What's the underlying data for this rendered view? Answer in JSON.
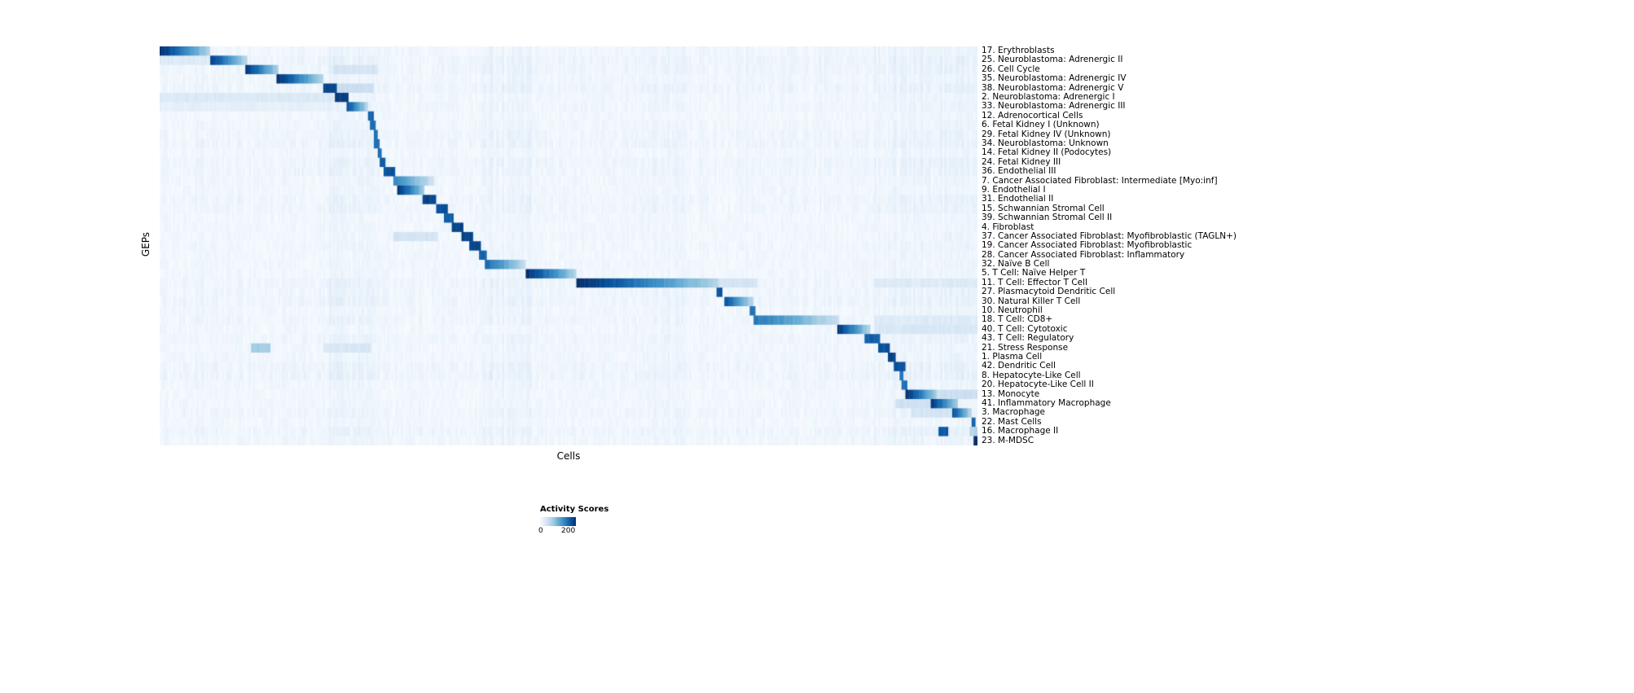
{
  "chart_data": {
    "type": "heatmap",
    "title": "",
    "xlabel": "Cells",
    "ylabel": "GEPs",
    "colorbar": {
      "title": "Activity Scores",
      "min": 0,
      "max": 200,
      "min_label": "0",
      "max_label": "200",
      "colors": [
        "#f7fbff",
        "#deebf7",
        "#c6dbef",
        "#9ecae1",
        "#6baed6",
        "#4292c6",
        "#2171b5",
        "#08519c",
        "#08306b"
      ]
    },
    "n_cols": 420,
    "noise": {
      "base": 4,
      "column": 7,
      "cell": 10,
      "bands": [
        [
          0.205,
          0.27,
          10
        ],
        [
          0.395,
          0.455,
          8
        ],
        [
          0.595,
          0.65,
          6
        ],
        [
          0.875,
          1.0,
          10
        ]
      ]
    },
    "rows": [
      {
        "label": "17. Erythroblasts",
        "blocks": [
          [
            0.0,
            0.062,
            200
          ]
        ]
      },
      {
        "label": "25. Neuroblastoma: Adrenergic II",
        "blocks": [
          [
            0.062,
            0.106,
            190
          ],
          [
            0.0,
            0.062,
            25
          ]
        ]
      },
      {
        "label": "26. Cell Cycle",
        "blocks": [
          [
            0.104,
            0.146,
            195
          ],
          [
            0.213,
            0.266,
            35
          ]
        ]
      },
      {
        "label": "35. Neuroblastoma: Adrenergic IV",
        "blocks": [
          [
            0.143,
            0.199,
            200
          ]
        ]
      },
      {
        "label": "38. Neuroblastoma: Adrenergic V",
        "blocks": [
          [
            0.199,
            0.217,
            185
          ],
          [
            0.217,
            0.262,
            45
          ]
        ]
      },
      {
        "label": "2. Neuroblastoma: Adrenergic I",
        "blocks": [
          [
            0.215,
            0.232,
            190
          ],
          [
            0.0,
            0.215,
            28
          ]
        ]
      },
      {
        "label": "33. Neuroblastoma: Adrenergic III",
        "blocks": [
          [
            0.229,
            0.255,
            175
          ],
          [
            0.0,
            0.21,
            18
          ]
        ]
      },
      {
        "label": "12. Adrenocortical Cells",
        "blocks": [
          [
            0.255,
            0.262,
            160
          ]
        ]
      },
      {
        "label": "6. Fetal Kidney I (Unknown)",
        "blocks": [
          [
            0.258,
            0.264,
            150
          ]
        ]
      },
      {
        "label": "29. Fetal Kidney IV (Unknown)",
        "blocks": [
          [
            0.261,
            0.266,
            150
          ]
        ]
      },
      {
        "label": "34. Neuroblastoma: Unknown",
        "blocks": [
          [
            0.263,
            0.268,
            150
          ]
        ]
      },
      {
        "label": "14. Fetal Kidney II (Podocytes)",
        "blocks": [
          [
            0.266,
            0.271,
            155
          ]
        ]
      },
      {
        "label": "24. Fetal Kidney III",
        "blocks": [
          [
            0.269,
            0.276,
            165
          ]
        ]
      },
      {
        "label": "36. Endothelial III",
        "blocks": [
          [
            0.273,
            0.289,
            175
          ]
        ]
      },
      {
        "label": "7. Cancer Associated Fibroblast: Intermediate [Myo:inf]",
        "blocks": [
          [
            0.286,
            0.335,
            135
          ]
        ]
      },
      {
        "label": "9. Endothelial I",
        "blocks": [
          [
            0.29,
            0.325,
            200
          ]
        ]
      },
      {
        "label": "31. Endothelial II",
        "blocks": [
          [
            0.322,
            0.339,
            185
          ]
        ]
      },
      {
        "label": "15. Schwannian Stromal Cell",
        "blocks": [
          [
            0.337,
            0.352,
            175
          ]
        ]
      },
      {
        "label": "39. Schwannian Stromal Cell II",
        "blocks": [
          [
            0.348,
            0.359,
            165
          ]
        ]
      },
      {
        "label": "4. Fibroblast",
        "blocks": [
          [
            0.357,
            0.372,
            185
          ]
        ]
      },
      {
        "label": "37. Cancer Associated Fibroblast: Myofibroblastic (TAGLN+)",
        "blocks": [
          [
            0.368,
            0.383,
            185
          ],
          [
            0.286,
            0.34,
            35
          ]
        ]
      },
      {
        "label": "19. Cancer Associated Fibroblast: Myofibroblastic",
        "blocks": [
          [
            0.379,
            0.393,
            185
          ]
        ]
      },
      {
        "label": "28. Cancer Associated Fibroblast: Inflammatory",
        "blocks": [
          [
            0.39,
            0.4,
            165
          ]
        ]
      },
      {
        "label": "32. Naïve B Cell",
        "blocks": [
          [
            0.398,
            0.448,
            155
          ]
        ]
      },
      {
        "label": "5. T Cell: Naïve Helper T",
        "blocks": [
          [
            0.447,
            0.51,
            200
          ]
        ]
      },
      {
        "label": "11. T Cell: Effector T Cell",
        "blocks": [
          [
            0.509,
            0.683,
            200
          ],
          [
            0.683,
            0.73,
            35
          ],
          [
            0.875,
            1.0,
            25
          ]
        ]
      },
      {
        "label": "27. Plasmacytoid Dendritic Cell",
        "blocks": [
          [
            0.681,
            0.688,
            175
          ]
        ]
      },
      {
        "label": "30. Natural Killer T Cell",
        "blocks": [
          [
            0.69,
            0.726,
            175
          ]
        ]
      },
      {
        "label": "10. Neutrophil",
        "blocks": [
          [
            0.721,
            0.728,
            145
          ]
        ]
      },
      {
        "label": "18. T Cell: CD8+",
        "blocks": [
          [
            0.726,
            0.831,
            145
          ],
          [
            0.875,
            1.0,
            25
          ]
        ]
      },
      {
        "label": "40. T Cell: Cytotoxic",
        "blocks": [
          [
            0.829,
            0.868,
            195
          ],
          [
            0.875,
            1.0,
            30
          ]
        ]
      },
      {
        "label": "43. T Cell: Regulatory",
        "blocks": [
          [
            0.863,
            0.881,
            165
          ]
        ]
      },
      {
        "label": "21. Stress Response",
        "blocks": [
          [
            0.878,
            0.894,
            175
          ],
          [
            0.112,
            0.135,
            70
          ],
          [
            0.2,
            0.26,
            30
          ]
        ]
      },
      {
        "label": "1. Plasma Cell",
        "blocks": [
          [
            0.89,
            0.901,
            185
          ]
        ]
      },
      {
        "label": "42. Dendritic Cell",
        "blocks": [
          [
            0.898,
            0.913,
            175
          ]
        ]
      },
      {
        "label": "8. Hepatocyte-Like Cell",
        "blocks": [
          [
            0.904,
            0.91,
            150
          ]
        ]
      },
      {
        "label": "20. Hepatocyte-Like Cell II",
        "blocks": [
          [
            0.908,
            0.914,
            150
          ]
        ]
      },
      {
        "label": "13. Monocyte",
        "blocks": [
          [
            0.913,
            0.951,
            200
          ],
          [
            0.951,
            1.0,
            45
          ]
        ]
      },
      {
        "label": "41. Inflammatory Macrophage",
        "blocks": [
          [
            0.943,
            0.977,
            195
          ],
          [
            0.9,
            0.943,
            40
          ]
        ]
      },
      {
        "label": "3. Macrophage",
        "blocks": [
          [
            0.968,
            0.992,
            185
          ],
          [
            0.92,
            0.968,
            35
          ]
        ]
      },
      {
        "label": "22. Mast Cells",
        "blocks": [
          [
            0.992,
            0.998,
            165
          ]
        ]
      },
      {
        "label": "16. Macrophage II",
        "blocks": [
          [
            0.953,
            0.964,
            170
          ],
          [
            0.99,
            1.0,
            60
          ]
        ]
      },
      {
        "label": "23. M-MDSC",
        "blocks": [
          [
            0.995,
            1.0,
            200
          ]
        ]
      }
    ]
  }
}
